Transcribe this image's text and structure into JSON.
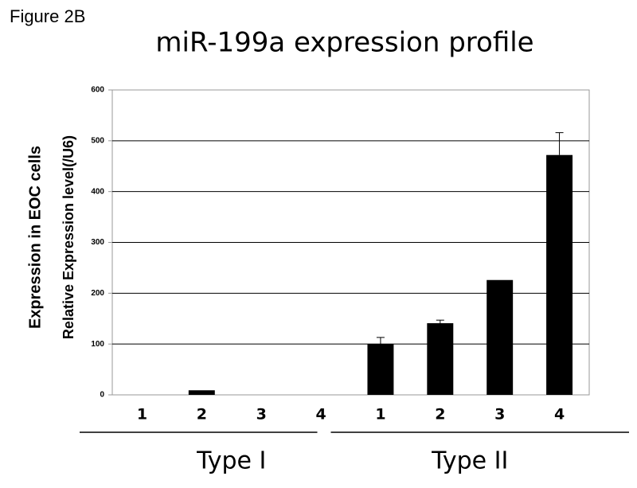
{
  "chart_data": {
    "type": "bar",
    "figure_label": "Figure 2B",
    "title": "miR-199a expression profile",
    "y_label_outer": "Expression in EOC cells",
    "y_label": "Relative Expression level(/U6)",
    "categories": [
      "1",
      "2",
      "3",
      "4",
      "1",
      "2",
      "3",
      "4"
    ],
    "group_labels": [
      "Type I",
      "Type II"
    ],
    "values": [
      0,
      9,
      0,
      0,
      100,
      141,
      226,
      472
    ],
    "errors": [
      null,
      null,
      null,
      null,
      13,
      6,
      null,
      44
    ],
    "color": "#000000",
    "ylim": [
      0,
      600
    ],
    "yticks": [
      0,
      100,
      200,
      300,
      400,
      500,
      600
    ],
    "grid": true
  }
}
